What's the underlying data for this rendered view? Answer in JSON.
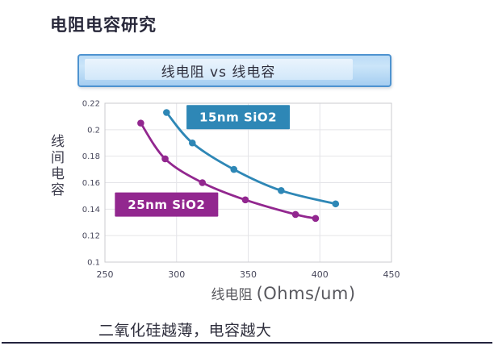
{
  "slide": {
    "title": "电阻电容研究",
    "banner": {
      "text": "线电阻 vs 线电容"
    },
    "footnote": "二氧化硅越薄，电容越大"
  },
  "chart_data": {
    "type": "scatter",
    "title": "线电阻 vs 线电容",
    "xlabel_cjk": "线电阻",
    "xlabel_unit": "(Ohms/um)",
    "ylabel": "线间电容",
    "xlim": [
      250,
      450
    ],
    "ylim": [
      0.1,
      0.22
    ],
    "x_ticks": [
      "250",
      "300",
      "350",
      "400",
      "450"
    ],
    "y_ticks": [
      "0.22",
      "0.2",
      "0.18",
      "0.16",
      "0.14",
      "0.12",
      "0.1"
    ],
    "grid": true,
    "legend_position": "inline-label-boxes",
    "series": [
      {
        "name": "15nm SiO2",
        "color": "#2e87b6",
        "points": [
          [
            293,
            0.213
          ],
          [
            311,
            0.19
          ],
          [
            340,
            0.17
          ],
          [
            373,
            0.154
          ],
          [
            411,
            0.144
          ]
        ],
        "label_anchor": [
          343,
          0.2095
        ]
      },
      {
        "name": "25nm SiO2",
        "color": "#92278f",
        "points": [
          [
            275,
            0.205
          ],
          [
            292,
            0.178
          ],
          [
            318,
            0.16
          ],
          [
            348,
            0.147
          ],
          [
            383,
            0.136
          ],
          [
            397,
            0.133
          ]
        ],
        "label_anchor": [
          293,
          0.1435
        ]
      }
    ]
  },
  "colors": {
    "grid": "#e4e4e8",
    "axis_box": "#cbcbcf",
    "tick_text": "#46465a",
    "label_text": "#ffffff"
  }
}
